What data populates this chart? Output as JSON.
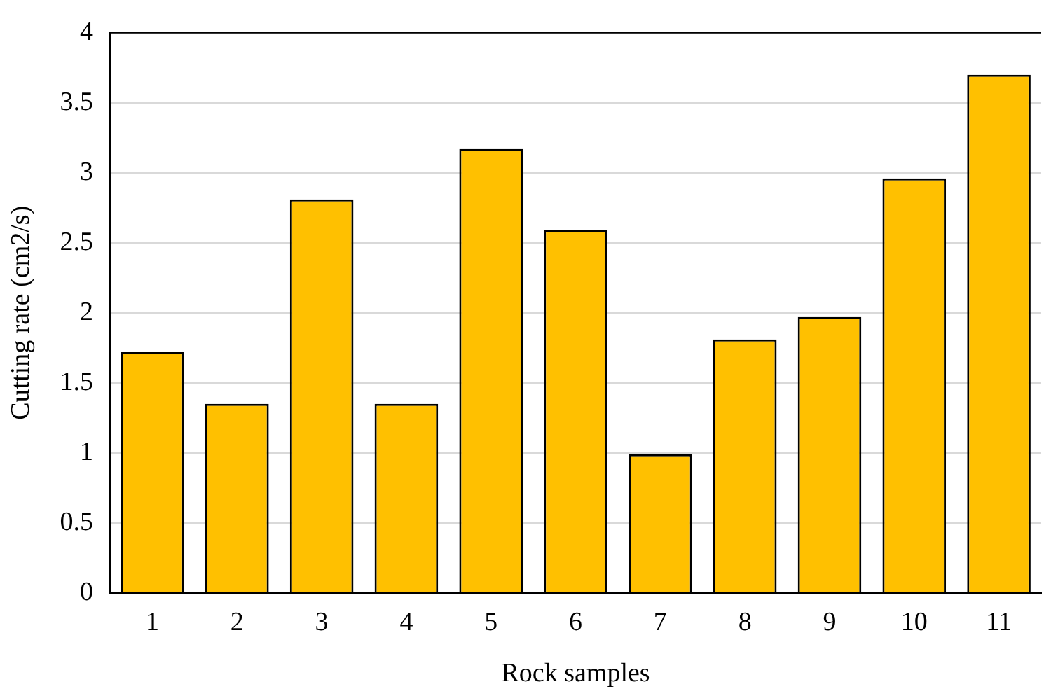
{
  "chart_data": {
    "type": "bar",
    "xlabel": "Rock samples",
    "ylabel": "Cutting rate (cm2/s)",
    "categories": [
      "1",
      "2",
      "3",
      "4",
      "5",
      "6",
      "7",
      "8",
      "9",
      "10",
      "11"
    ],
    "values": [
      1.72,
      1.35,
      2.81,
      1.35,
      3.17,
      2.59,
      0.99,
      1.81,
      1.97,
      2.96,
      3.7
    ],
    "color": "#ffc000",
    "ylim": [
      0,
      4
    ],
    "yticks": [
      0,
      0.5,
      1,
      1.5,
      2,
      2.5,
      3,
      3.5,
      4
    ],
    "grid": "y",
    "legend": false
  }
}
